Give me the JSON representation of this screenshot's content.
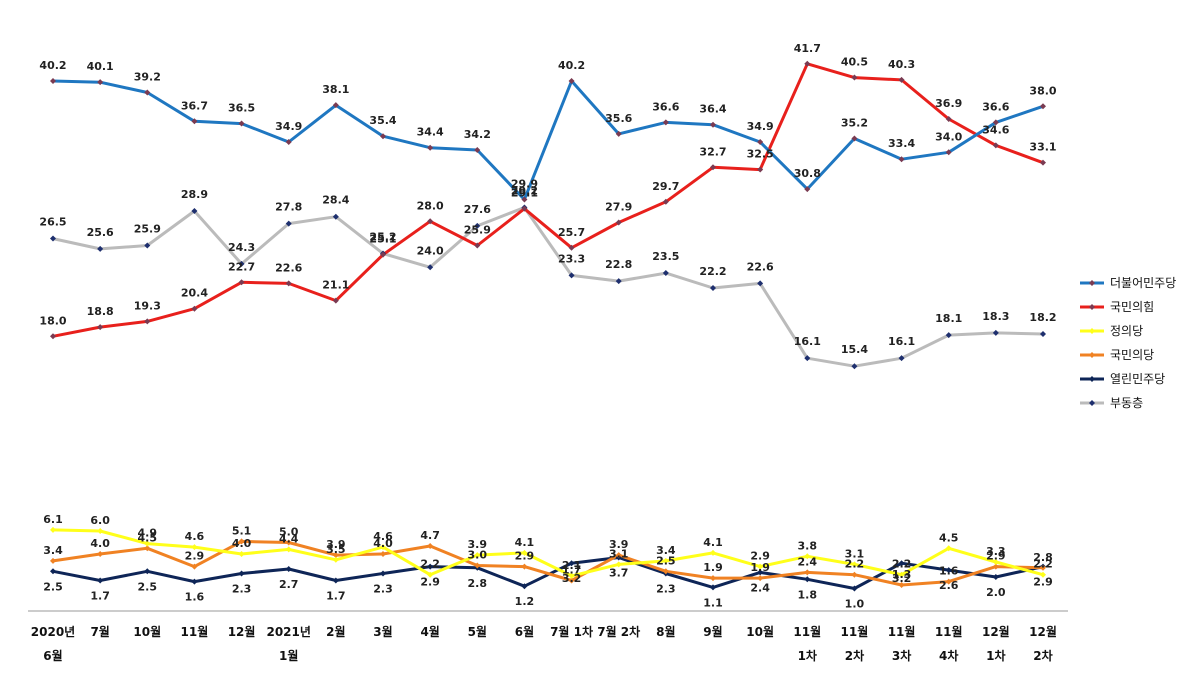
{
  "chart_data": {
    "type": "line",
    "title": "",
    "xlabel": "",
    "ylabel": "",
    "grid": false,
    "legend_position": "right",
    "x_labels": [
      [
        "2020년",
        "6월"
      ],
      [
        "7월"
      ],
      [
        "10월"
      ],
      [
        "11월"
      ],
      [
        "12월"
      ],
      [
        "2021년",
        "1월"
      ],
      [
        "2월"
      ],
      [
        "3월"
      ],
      [
        "4월"
      ],
      [
        "5월"
      ],
      [
        "6월"
      ],
      [
        "7월 1차"
      ],
      [
        "7월 2차"
      ],
      [
        "8월"
      ],
      [
        "9월"
      ],
      [
        "10월"
      ],
      [
        "11월",
        "1차"
      ],
      [
        "11월",
        "2차"
      ],
      [
        "11월",
        "3차"
      ],
      [
        "11월",
        "4차"
      ],
      [
        "12월",
        "1차"
      ],
      [
        "12월",
        "2차"
      ]
    ],
    "series": [
      {
        "name": "더불어민주당",
        "color": "#1F77C1",
        "marker_color": "#7A3B52",
        "group": "top",
        "values": [
          40.2,
          40.1,
          39.2,
          36.7,
          36.5,
          34.9,
          38.1,
          35.4,
          34.4,
          34.2,
          29.9,
          40.2,
          35.6,
          36.6,
          36.4,
          34.9,
          30.8,
          35.2,
          33.4,
          34.0,
          36.6,
          38.0
        ]
      },
      {
        "name": "국민의힘",
        "color": "#E8201C",
        "marker_color": "#7A3B52",
        "group": "top",
        "values": [
          18.0,
          18.8,
          19.3,
          20.4,
          22.7,
          22.6,
          21.1,
          25.1,
          28.0,
          25.9,
          29.1,
          25.7,
          27.9,
          29.7,
          32.7,
          32.5,
          41.7,
          40.5,
          40.3,
          36.9,
          34.6,
          33.1
        ]
      },
      {
        "name": "정의당",
        "color": "#FFFF1A",
        "marker_color": "#FFFF1A",
        "group": "bottom",
        "values": [
          6.1,
          6.0,
          4.9,
          4.6,
          4.0,
          4.4,
          3.5,
          4.6,
          2.2,
          3.9,
          4.1,
          2.1,
          3.1,
          3.4,
          4.1,
          2.9,
          3.8,
          3.1,
          2.2,
          4.5,
          3.3,
          2.2
        ]
      },
      {
        "name": "국민의당",
        "color": "#F08223",
        "marker_color": "#F08223",
        "group": "bottom",
        "values": [
          3.4,
          4.0,
          4.5,
          2.9,
          5.1,
          5.0,
          3.9,
          4.0,
          4.7,
          3.0,
          2.9,
          1.7,
          3.9,
          2.5,
          1.9,
          1.9,
          2.4,
          2.2,
          1.3,
          1.6,
          2.9,
          2.8
        ]
      },
      {
        "name": "열린민주당",
        "color": "#0E2557",
        "marker_color": "#0E2557",
        "group": "bottom",
        "values": [
          2.5,
          1.7,
          2.5,
          1.6,
          2.3,
          2.7,
          1.7,
          2.3,
          2.9,
          2.8,
          1.2,
          3.2,
          3.7,
          2.3,
          1.1,
          2.4,
          1.8,
          1.0,
          3.2,
          2.6,
          2.0,
          2.9
        ]
      },
      {
        "name": "부동층",
        "color": "#BBBBBB",
        "marker_color": "#1E2F6E",
        "group": "top",
        "values": [
          26.5,
          25.6,
          25.9,
          28.9,
          24.3,
          27.8,
          28.4,
          25.2,
          24.0,
          27.6,
          29.2,
          23.3,
          22.8,
          23.5,
          22.2,
          22.6,
          16.1,
          15.4,
          16.1,
          18.1,
          18.3,
          18.2
        ]
      }
    ]
  }
}
